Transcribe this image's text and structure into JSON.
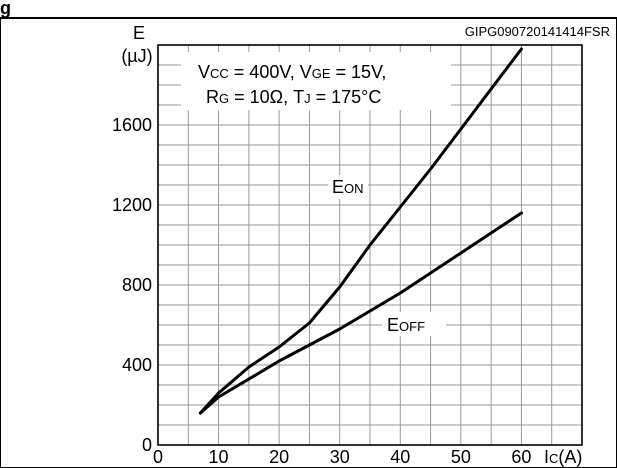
{
  "header_fragment": "g",
  "figure_id": "GIPG090720141414FSR",
  "conditions": {
    "line1": [
      {
        "t": "V"
      },
      {
        "t": "CC",
        "sub": true
      },
      {
        "t": " = 400V, V"
      },
      {
        "t": "GE",
        "sub": true
      },
      {
        "t": " = 15V,"
      }
    ],
    "line2": [
      {
        "t": "R"
      },
      {
        "t": "G",
        "sub": true
      },
      {
        "t": " = 10Ω, T"
      },
      {
        "t": "J",
        "sub": true
      },
      {
        "t": " = 175°C"
      }
    ]
  },
  "y_axis_label": [
    "E",
    "(µJ)"
  ],
  "x_axis_label": [
    {
      "t": "I"
    },
    {
      "t": "C",
      "sub": true
    },
    {
      "t": "(A)"
    }
  ],
  "series_labels": [
    {
      "main": "E",
      "sub": "ON"
    },
    {
      "main": "E",
      "sub": "OFF"
    }
  ],
  "colors": {
    "line": "#000000",
    "grid": "#9a9a9a",
    "background": "#ffffff"
  },
  "chart_data": {
    "type": "line",
    "title": "",
    "xlabel": "IC(A)",
    "ylabel": "E (µJ)",
    "xlim": [
      0,
      70
    ],
    "ylim": [
      0,
      2000
    ],
    "x_ticks": [
      0,
      10,
      20,
      30,
      40,
      50,
      60
    ],
    "y_ticks": [
      0,
      400,
      800,
      1200,
      1600
    ],
    "grid": true,
    "series": [
      {
        "name": "EON",
        "x": [
          7,
          10,
          15,
          20,
          25,
          30,
          35,
          40,
          45,
          50,
          55,
          60
        ],
        "y": [
          160,
          260,
          390,
          490,
          610,
          790,
          1000,
          1190,
          1380,
          1580,
          1780,
          1980
        ]
      },
      {
        "name": "EOFF",
        "x": [
          7,
          10,
          15,
          20,
          25,
          30,
          35,
          40,
          45,
          50,
          55,
          60
        ],
        "y": [
          160,
          240,
          330,
          420,
          500,
          580,
          670,
          760,
          860,
          960,
          1060,
          1160
        ]
      }
    ]
  }
}
